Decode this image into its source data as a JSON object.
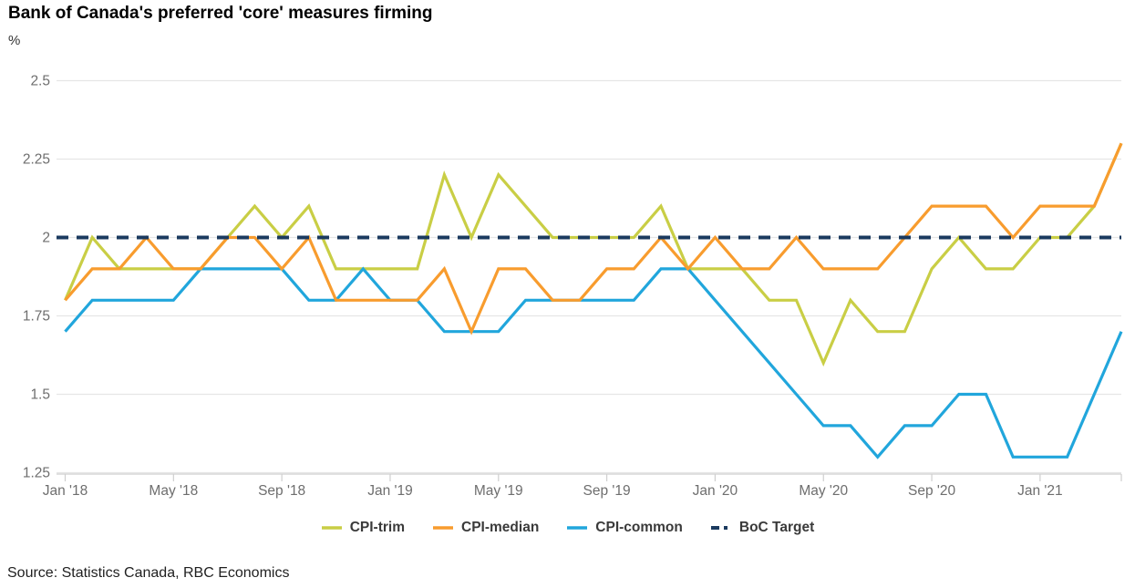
{
  "title": "Bank of Canada's preferred 'core' measures firming",
  "unit_label": "%",
  "source": "Source: Statistics Canada, RBC Economics",
  "colors": {
    "trim": "#c9ce45",
    "median": "#f89c2e",
    "common": "#21a6dc",
    "target": "#1b3a5f",
    "gridline": "#e6e6e6",
    "axis": "#cfcfcf",
    "tick_text": "#6e6e6e"
  },
  "chart_data": {
    "type": "line",
    "title": "Bank of Canada's preferred 'core' measures firming",
    "ylabel": "%",
    "n_points": 40,
    "x_start": "Jan 2018",
    "x_end": "Apr 2021",
    "x_tick_labels": [
      "Jan '18",
      "May '18",
      "Sep '18",
      "Jan '19",
      "May '19",
      "Sep '19",
      "Jan '20",
      "May '20",
      "Sep '20",
      "Jan '21"
    ],
    "x_tick_indices": [
      0,
      4,
      8,
      12,
      16,
      20,
      24,
      28,
      32,
      36
    ],
    "ytick_labels": [
      "2.5",
      "2.25",
      "2",
      "1.75",
      "1.5",
      "1.25"
    ],
    "yticks": [
      2.5,
      2.25,
      2.0,
      1.75,
      1.5,
      1.25
    ],
    "ylim": [
      1.25,
      2.5
    ],
    "grid": "horizontal",
    "legend_position": "bottom",
    "boc_target_value": 2.0,
    "series": [
      {
        "name": "CPI-trim",
        "color": "#c9ce45",
        "dashed": false,
        "values": [
          1.8,
          2.0,
          1.9,
          1.9,
          1.9,
          1.9,
          2.0,
          2.1,
          2.0,
          2.1,
          1.9,
          1.9,
          1.9,
          1.9,
          2.2,
          2.0,
          2.2,
          2.1,
          2.0,
          2.0,
          2.0,
          2.0,
          2.1,
          1.9,
          1.9,
          1.9,
          1.8,
          1.8,
          1.6,
          1.8,
          1.7,
          1.7,
          1.9,
          2.0,
          1.9,
          1.9,
          2.0,
          2.0,
          2.1,
          2.3
        ]
      },
      {
        "name": "CPI-common",
        "color": "#21a6dc",
        "dashed": false,
        "values": [
          1.7,
          1.8,
          1.8,
          1.8,
          1.8,
          1.9,
          1.9,
          1.9,
          1.9,
          1.8,
          1.8,
          1.9,
          1.8,
          1.8,
          1.7,
          1.7,
          1.7,
          1.8,
          1.8,
          1.8,
          1.8,
          1.8,
          1.9,
          1.9,
          1.8,
          1.7,
          1.6,
          1.5,
          1.4,
          1.4,
          1.3,
          1.4,
          1.4,
          1.5,
          1.5,
          1.3,
          1.3,
          1.3,
          1.5,
          1.7
        ]
      },
      {
        "name": "CPI-median",
        "color": "#f89c2e",
        "dashed": false,
        "values": [
          1.8,
          1.9,
          1.9,
          2.0,
          1.9,
          1.9,
          2.0,
          2.0,
          1.9,
          2.0,
          1.8,
          1.8,
          1.8,
          1.8,
          1.9,
          1.7,
          1.9,
          1.9,
          1.8,
          1.8,
          1.9,
          1.9,
          2.0,
          1.9,
          2.0,
          1.9,
          1.9,
          2.0,
          1.9,
          1.9,
          1.9,
          2.0,
          2.1,
          2.1,
          2.1,
          2.0,
          2.1,
          2.1,
          2.1,
          2.3
        ]
      },
      {
        "name": "BoC Target",
        "color": "#1b3a5f",
        "dashed": true,
        "constant": 2.0
      }
    ],
    "legend_order": [
      "CPI-trim",
      "CPI-median",
      "CPI-common",
      "BoC Target"
    ]
  }
}
